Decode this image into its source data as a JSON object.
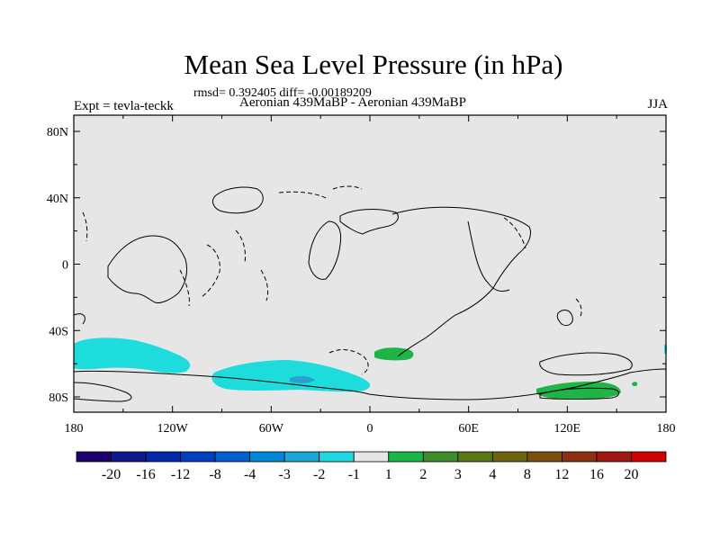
{
  "title": "Mean Sea Level Pressure (in hPa)",
  "stats": "rmsd= 0.392405 diff= -0.00189209",
  "experiment": "Expt = tevla-teckk",
  "subtitle": "Aeronian 439MaBP - Aeronian 439MaBP",
  "season": "JJA",
  "colors": {
    "background": "#e6e6e6",
    "coast": "#000000",
    "cyan": "#1fdcdc",
    "mid_blue": "#2aa0d2",
    "green": "#1eb446"
  },
  "map": {
    "lat_labels": [
      "80N",
      "40N",
      "0",
      "40S",
      "80S"
    ],
    "lat_values": [
      80,
      40,
      0,
      -40,
      -80
    ],
    "lon_labels": [
      "180",
      "120W",
      "60W",
      "0",
      "60E",
      "120E",
      "180"
    ],
    "lon_values": [
      -180,
      -120,
      -60,
      0,
      60,
      120,
      180
    ]
  },
  "colorbar": {
    "colors": [
      "#200070",
      "#101890",
      "#0028a8",
      "#0040c0",
      "#0060d0",
      "#0088d8",
      "#18a8d8",
      "#20d8e0",
      "#e6e6e6",
      "#18b848",
      "#3c8c2c",
      "#587818",
      "#6e6410",
      "#7c500c",
      "#8c3010",
      "#a01810",
      "#d00000"
    ],
    "labels": [
      "-20",
      "-16",
      "-12",
      "-8",
      "-4",
      "-3",
      "-2",
      "-1",
      "1",
      "2",
      "3",
      "4",
      "8",
      "12",
      "16",
      "20"
    ]
  }
}
